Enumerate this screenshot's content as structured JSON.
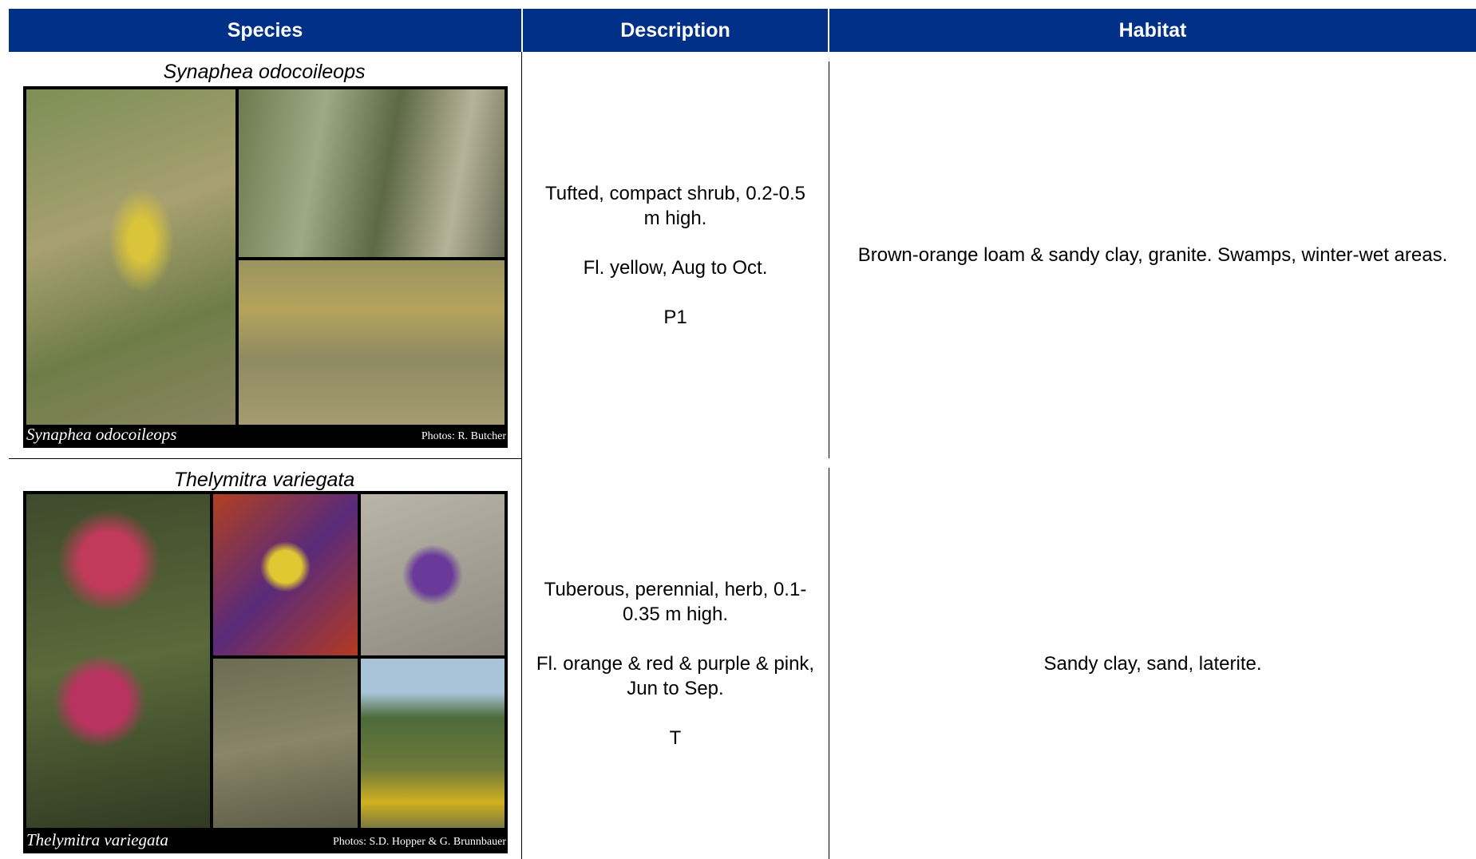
{
  "header": {
    "columns": [
      "Species",
      "Description",
      "Habitat"
    ]
  },
  "table": {
    "rows": [
      {
        "species": "Synaphea odocoileops",
        "photo_caption": "Synaphea odocoileops",
        "photo_credit": "Photos: R. Butcher",
        "description": [
          "Tufted, compact shrub, 0.2-0.5 m high.",
          "Fl. yellow, Aug to Oct.",
          "P1"
        ],
        "habitat": [
          "Brown-orange loam & sandy clay, granite. Swamps, winter-wet areas."
        ]
      },
      {
        "species": "Thelymitra variegata",
        "photo_caption": "Thelymitra variegata",
        "photo_credit": "Photos: S.D. Hopper & G. Brunnbauer",
        "description": [
          "Tuberous, perennial, herb, 0.1-0.35 m high.",
          "Fl. orange & red & purple & pink, Jun to Sep.",
          "T"
        ],
        "habitat": [
          "Sandy clay, sand, laterite."
        ]
      }
    ]
  }
}
